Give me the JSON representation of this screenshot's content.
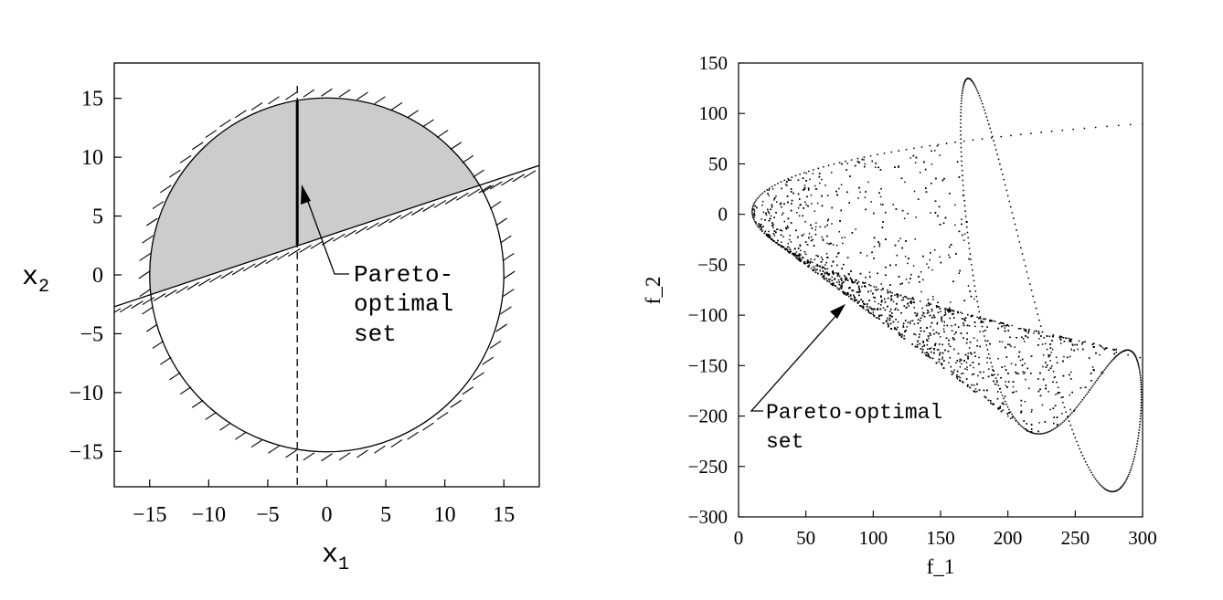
{
  "chart_data": [
    {
      "type": "scatter",
      "panel": "left",
      "xlabel": "x",
      "xlabel_sub": "1",
      "ylabel": "x",
      "ylabel_sub": "2",
      "xlim": [
        -18,
        18
      ],
      "ylim": [
        -18,
        18
      ],
      "xticks": [
        "−15",
        "−10",
        "−5",
        "0",
        "5",
        "10",
        "15"
      ],
      "xtick_values": [
        -15,
        -10,
        -5,
        0,
        5,
        10,
        15
      ],
      "yticks": [
        "15",
        "10",
        "5",
        "0",
        "−5",
        "−10",
        "−15"
      ],
      "ytick_values": [
        15,
        10,
        5,
        0,
        -5,
        -10,
        -15
      ],
      "constraint_circle": {
        "center": [
          0,
          0
        ],
        "radius": 15
      },
      "constraint_line": {
        "points": [
          [
            -18,
            -2.7
          ],
          [
            18,
            9.3
          ]
        ]
      },
      "dashed_line_x": -2.5,
      "feasible_region_color": "#cccccc",
      "pareto_set_segment": {
        "x": -2.5,
        "y": [
          2.5,
          14.8
        ]
      },
      "annotation": {
        "lines": [
          "Pareto-",
          "optimal",
          "set"
        ],
        "arrow_tip": [
          -2.2,
          7.5
        ]
      }
    },
    {
      "type": "scatter",
      "panel": "right",
      "xlabel": "f_1",
      "ylabel": "f_2",
      "xlim": [
        0,
        300
      ],
      "ylim": [
        -300,
        150
      ],
      "xticks": [
        "0",
        "50",
        "100",
        "150",
        "200",
        "250",
        "300"
      ],
      "xtick_values": [
        0,
        50,
        100,
        150,
        200,
        250,
        300
      ],
      "yticks": [
        "150",
        "100",
        "50",
        "0",
        "−50",
        "−100",
        "−150",
        "−200",
        "−250",
        "−300"
      ],
      "ytick_values": [
        150,
        100,
        50,
        0,
        -50,
        -100,
        -150,
        -200,
        -250,
        -300
      ],
      "point_color": "#000000",
      "annotation": {
        "lines": [
          "Pareto-optimal",
          "set"
        ],
        "arrow_tip": [
          80,
          -90
        ]
      }
    }
  ]
}
